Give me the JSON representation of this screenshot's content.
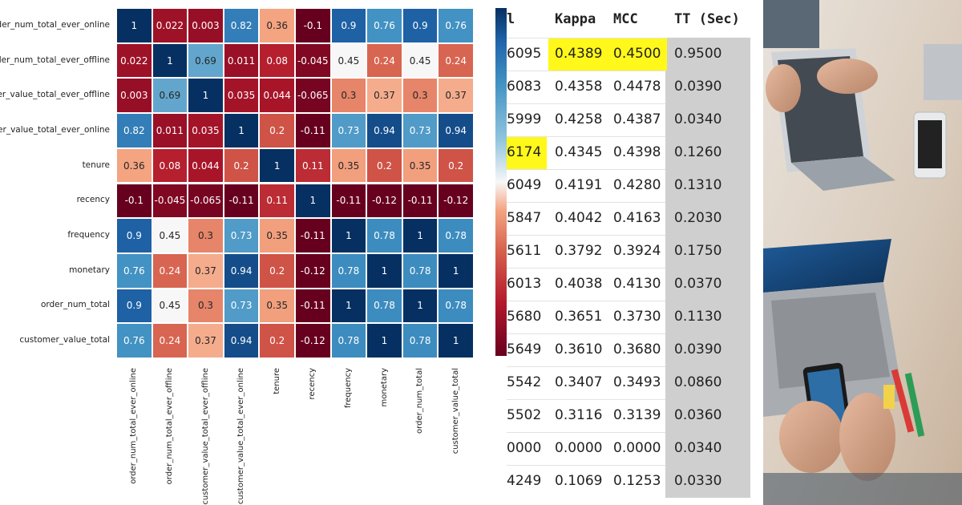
{
  "chart_data": {
    "type": "heatmap",
    "rows": [
      "order_num_total_ever_online",
      "order_num_total_ever_offline",
      "customer_value_total_ever_offline",
      "customer_value_total_ever_online",
      "tenure",
      "recency",
      "frequency",
      "monetary",
      "order_num_total",
      "customer_value_total"
    ],
    "columns": [
      "order_num_total_ever_online",
      "order_num_total_ever_offline",
      "customer_value_total_ever_offline",
      "customer_value_total_ever_online",
      "tenure",
      "recency",
      "frequency",
      "monetary",
      "order_num_total",
      "customer_value_total"
    ],
    "values": [
      [
        1,
        0.022,
        0.003,
        0.82,
        0.36,
        -0.1,
        0.9,
        0.76,
        0.9,
        0.76
      ],
      [
        0.022,
        1,
        0.69,
        0.011,
        0.08,
        -0.045,
        0.45,
        0.24,
        0.45,
        0.24
      ],
      [
        0.003,
        0.69,
        1,
        0.035,
        0.044,
        -0.065,
        0.3,
        0.37,
        0.3,
        0.37
      ],
      [
        0.82,
        0.011,
        0.035,
        1,
        0.2,
        -0.11,
        0.73,
        0.94,
        0.73,
        0.94
      ],
      [
        0.36,
        0.08,
        0.044,
        0.2,
        1,
        0.11,
        0.35,
        0.2,
        0.35,
        0.2
      ],
      [
        -0.1,
        -0.045,
        -0.065,
        -0.11,
        0.11,
        1,
        -0.11,
        -0.12,
        -0.11,
        -0.12
      ],
      [
        0.9,
        0.45,
        0.3,
        0.73,
        0.35,
        -0.11,
        1,
        0.78,
        1,
        0.78
      ],
      [
        0.76,
        0.24,
        0.37,
        0.94,
        0.2,
        -0.12,
        0.78,
        1,
        0.78,
        1
      ],
      [
        0.9,
        0.45,
        0.3,
        0.73,
        0.35,
        -0.11,
        1,
        0.78,
        1,
        0.78
      ],
      [
        0.76,
        0.24,
        0.37,
        0.94,
        0.2,
        -0.12,
        0.78,
        1,
        0.78,
        1
      ]
    ],
    "value_labels": [
      [
        "1",
        "0.022",
        "0.003",
        "0.82",
        "0.36",
        "-0.1",
        "0.9",
        "0.76",
        "0.9",
        "0.76"
      ],
      [
        "0.022",
        "1",
        "0.69",
        "0.011",
        "0.08",
        "-0.045",
        "0.45",
        "0.24",
        "0.45",
        "0.24"
      ],
      [
        "0.003",
        "0.69",
        "1",
        "0.035",
        "0.044",
        "-0.065",
        "0.3",
        "0.37",
        "0.3",
        "0.37"
      ],
      [
        "0.82",
        "0.011",
        "0.035",
        "1",
        "0.2",
        "-0.11",
        "0.73",
        "0.94",
        "0.73",
        "0.94"
      ],
      [
        "0.36",
        "0.08",
        "0.044",
        "0.2",
        "1",
        "0.11",
        "0.35",
        "0.2",
        "0.35",
        "0.2"
      ],
      [
        "-0.1",
        "-0.045",
        "-0.065",
        "-0.11",
        "0.11",
        "1",
        "-0.11",
        "-0.12",
        "-0.11",
        "-0.12"
      ],
      [
        "0.9",
        "0.45",
        "0.3",
        "0.73",
        "0.35",
        "-0.11",
        "1",
        "0.78",
        "1",
        "0.78"
      ],
      [
        "0.76",
        "0.24",
        "0.37",
        "0.94",
        "0.2",
        "-0.12",
        "0.78",
        "1",
        "0.78",
        "1"
      ],
      [
        "0.9",
        "0.45",
        "0.3",
        "0.73",
        "0.35",
        "-0.11",
        "1",
        "0.78",
        "1",
        "0.78"
      ],
      [
        "0.76",
        "0.24",
        "0.37",
        "0.94",
        "0.2",
        "-0.12",
        "0.78",
        "1",
        "0.78",
        "1"
      ]
    ],
    "colormap": "RdBu",
    "vmin": -0.1,
    "vmax": 1,
    "colorbar": true
  },
  "table": {
    "headers": [
      "l",
      "Kappa",
      "MCC",
      "TT (Sec)"
    ],
    "rows": [
      [
        "6095",
        "0.4389",
        "0.4500",
        "0.9500"
      ],
      [
        "6083",
        "0.4358",
        "0.4478",
        "0.0390"
      ],
      [
        "5999",
        "0.4258",
        "0.4387",
        "0.0340"
      ],
      [
        "6174",
        "0.4345",
        "0.4398",
        "0.1260"
      ],
      [
        "6049",
        "0.4191",
        "0.4280",
        "0.1310"
      ],
      [
        "5847",
        "0.4042",
        "0.4163",
        "0.2030"
      ],
      [
        "5611",
        "0.3792",
        "0.3924",
        "0.1750"
      ],
      [
        "6013",
        "0.4038",
        "0.4130",
        "0.0370"
      ],
      [
        "5680",
        "0.3651",
        "0.3730",
        "0.1130"
      ],
      [
        "5649",
        "0.3610",
        "0.3680",
        "0.0390"
      ],
      [
        "5542",
        "0.3407",
        "0.3493",
        "0.0860"
      ],
      [
        "5502",
        "0.3116",
        "0.3139",
        "0.0360"
      ],
      [
        "0000",
        "0.0000",
        "0.0000",
        "0.0340"
      ],
      [
        "4249",
        "0.1069",
        "0.1253",
        "0.0330"
      ]
    ],
    "highlighted_cells": [
      [
        0,
        1
      ],
      [
        0,
        2
      ],
      [
        3,
        0
      ]
    ],
    "highlight_color": "#fff81a",
    "tt_column_color": "#cfcfcf"
  },
  "photo": {
    "description_icon": "laptops-phone-desk-photo"
  }
}
